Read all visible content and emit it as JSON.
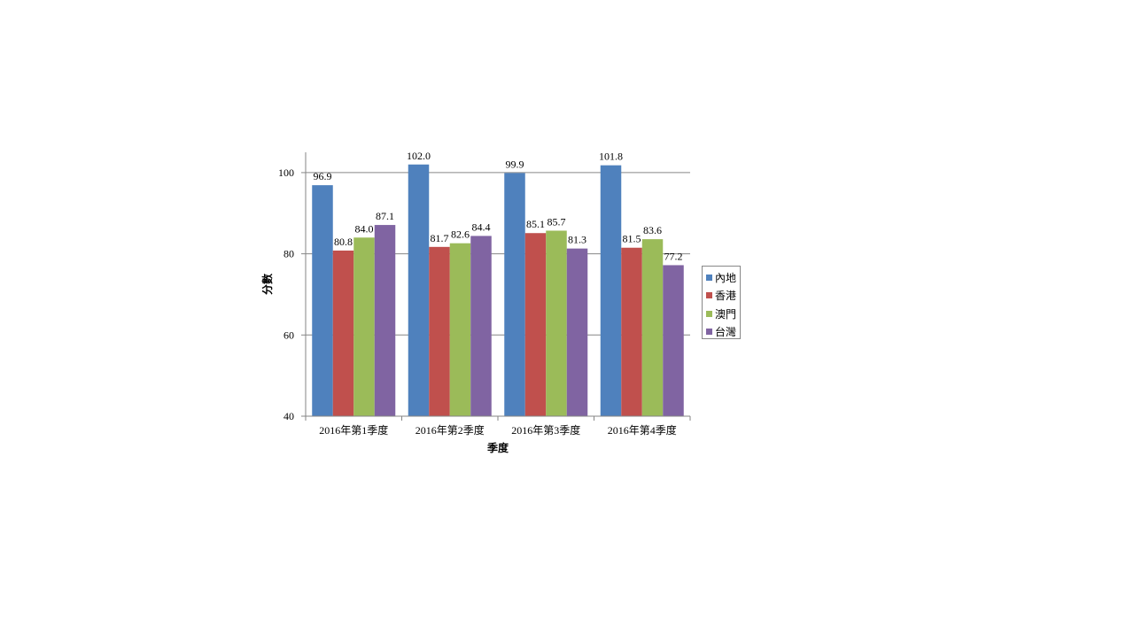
{
  "chart_data": {
    "type": "bar",
    "categories": [
      "2016年第1季度",
      "2016年第2季度",
      "2016年第3季度",
      "2016年第4季度"
    ],
    "series": [
      {
        "name": "內地",
        "values": [
          96.9,
          102.0,
          99.9,
          101.8
        ],
        "color": "#4F81BD"
      },
      {
        "name": "香港",
        "values": [
          80.8,
          81.7,
          85.1,
          81.5
        ],
        "color": "#C0504D"
      },
      {
        "name": "澳門",
        "values": [
          84.0,
          82.6,
          85.7,
          83.6
        ],
        "color": "#9BBB59"
      },
      {
        "name": "台灣",
        "values": [
          87.1,
          84.4,
          81.3,
          77.2
        ],
        "color": "#8064A2"
      }
    ],
    "data_labels": [
      [
        "96.9",
        "102.0",
        "99.9",
        "101.8"
      ],
      [
        "80.8",
        "81.7",
        "85.1",
        "81.5"
      ],
      [
        "84.0",
        "82.6",
        "85.7",
        "83.6"
      ],
      [
        "87.1",
        "84.4",
        "81.3",
        "77.2"
      ]
    ],
    "xlabel": "季度",
    "ylabel": "分數",
    "ylim": [
      40,
      105
    ],
    "yticks": [
      40,
      60,
      80,
      100
    ],
    "ytick_labels": [
      "40",
      "60",
      "80",
      "100"
    ],
    "grid": true,
    "legend_position": "right"
  }
}
